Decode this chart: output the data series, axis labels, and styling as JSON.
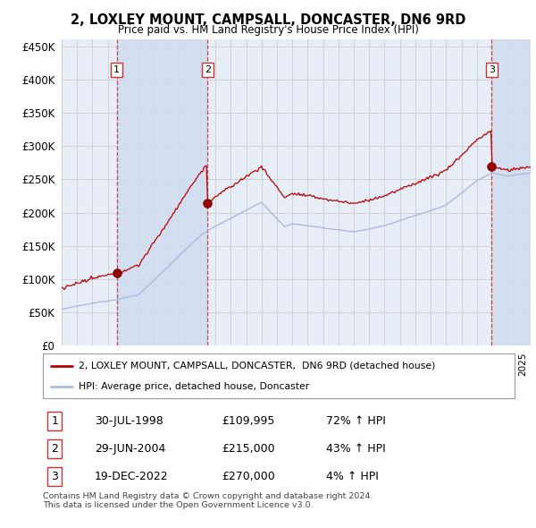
{
  "title": "2, LOXLEY MOUNT, CAMPSALL, DONCASTER, DN6 9RD",
  "subtitle": "Price paid vs. HM Land Registry's House Price Index (HPI)",
  "ylim": [
    0,
    460000
  ],
  "yticks": [
    0,
    50000,
    100000,
    150000,
    200000,
    250000,
    300000,
    350000,
    400000,
    450000
  ],
  "ytick_labels": [
    "£0",
    "£50K",
    "£100K",
    "£150K",
    "£200K",
    "£250K",
    "£300K",
    "£350K",
    "£400K",
    "£450K"
  ],
  "hpi_color": "#aabbdd",
  "price_color": "#bb0000",
  "sale_marker_color": "#880000",
  "vline_color": "#cc3333",
  "annotation_box_color": "#cc3333",
  "background_color": "#ffffff",
  "plot_bg_color": "#e8eef8",
  "shade_color": "#d0daf0",
  "grid_color": "#cccccc",
  "sales": [
    {
      "date_num": 1998.58,
      "price": 109995,
      "label": "1"
    },
    {
      "date_num": 2004.49,
      "price": 215000,
      "label": "2"
    },
    {
      "date_num": 2022.96,
      "price": 270000,
      "label": "3"
    }
  ],
  "legend_label_red": "2, LOXLEY MOUNT, CAMPSALL, DONCASTER,  DN6 9RD (detached house)",
  "legend_label_blue": "HPI: Average price, detached house, Doncaster",
  "table_rows": [
    {
      "num": "1",
      "date": "30-JUL-1998",
      "price": "£109,995",
      "hpi": "72% ↑ HPI"
    },
    {
      "num": "2",
      "date": "29-JUN-2004",
      "price": "£215,000",
      "hpi": "43% ↑ HPI"
    },
    {
      "num": "3",
      "date": "19-DEC-2022",
      "price": "£270,000",
      "hpi": "4% ↑ HPI"
    }
  ],
  "footer": "Contains HM Land Registry data © Crown copyright and database right 2024.\nThis data is licensed under the Open Government Licence v3.0.",
  "xmin": 1995.0,
  "xmax": 2025.5
}
